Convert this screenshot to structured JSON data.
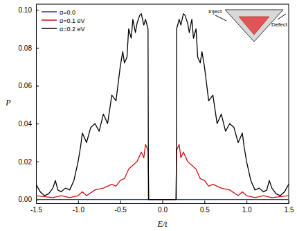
{
  "chart_data": {
    "type": "line",
    "x_label": "E/t",
    "y_label": "P",
    "xlim": [
      -1.5,
      1.5
    ],
    "ylim": [
      -0.002,
      0.103
    ],
    "xticks": [
      -1.5,
      {
        "value": -1,
        "label": "-1.0"
      },
      -0.5,
      {
        "value": 0,
        "label": "0.0"
      },
      0.5,
      {
        "value": 1,
        "label": "1.0"
      },
      1.5
    ],
    "yticks": [
      {
        "value": 0,
        "label": "0.00"
      },
      {
        "value": 0.02,
        "label": "0.02"
      },
      {
        "value": 0.04,
        "label": "0.04"
      },
      {
        "value": 0.06,
        "label": "0.06"
      },
      {
        "value": 0.08,
        "label": "0.08"
      },
      {
        "value": 0.1,
        "label": "0.10"
      }
    ],
    "legend": "upper left",
    "annotations": [
      {
        "text": "Inject"
      },
      {
        "text": "Defect"
      }
    ],
    "series": [
      {
        "name": "α=0.0",
        "color": "#2233cc",
        "x": [
          -1.5,
          1.5
        ],
        "values": [
          0,
          0
        ]
      },
      {
        "name": "α=0.1 eV",
        "color": "#cc1111",
        "x": [
          -1.5,
          -1.3,
          -1.2,
          -1.1,
          -1.0,
          -0.95,
          -0.9,
          -0.8,
          -0.7,
          -0.6,
          -0.55,
          -0.5,
          -0.45,
          -0.4,
          -0.35,
          -0.3,
          -0.25,
          -0.22,
          -0.2,
          -0.17,
          -0.16,
          0.16,
          0.17,
          0.2,
          0.22,
          0.25,
          0.3,
          0.35,
          0.4,
          0.45,
          0.5,
          0.55,
          0.6,
          0.7,
          0.8,
          0.9,
          0.95,
          1.0,
          1.1,
          1.2,
          1.3,
          1.5
        ],
        "values": [
          0.002,
          0.001,
          0.002,
          0.001,
          0.002,
          0.004,
          0.002,
          0.005,
          0.006,
          0.008,
          0.007,
          0.01,
          0.011,
          0.016,
          0.018,
          0.02,
          0.025,
          0.022,
          0.029,
          0.026,
          0,
          0,
          0.026,
          0.029,
          0.022,
          0.025,
          0.02,
          0.018,
          0.016,
          0.011,
          0.01,
          0.007,
          0.008,
          0.006,
          0.005,
          0.002,
          0.004,
          0.002,
          0.001,
          0.002,
          0.001,
          0.002
        ]
      },
      {
        "name": "α=0.2 eV",
        "color": "#000000",
        "x": [
          -1.5,
          -1.45,
          -1.4,
          -1.35,
          -1.3,
          -1.27,
          -1.24,
          -1.2,
          -1.15,
          -1.1,
          -1.05,
          -1.0,
          -0.97,
          -0.95,
          -0.9,
          -0.85,
          -0.8,
          -0.75,
          -0.7,
          -0.65,
          -0.6,
          -0.55,
          -0.5,
          -0.47,
          -0.45,
          -0.42,
          -0.4,
          -0.37,
          -0.35,
          -0.32,
          -0.3,
          -0.27,
          -0.25,
          -0.22,
          -0.2,
          -0.17,
          -0.165,
          0.165,
          0.17,
          0.2,
          0.22,
          0.25,
          0.27,
          0.3,
          0.32,
          0.35,
          0.37,
          0.4,
          0.42,
          0.45,
          0.47,
          0.5,
          0.55,
          0.6,
          0.65,
          0.7,
          0.75,
          0.8,
          0.85,
          0.9,
          0.95,
          0.97,
          1.0,
          1.05,
          1.1,
          1.15,
          1.2,
          1.24,
          1.27,
          1.3,
          1.35,
          1.4,
          1.45,
          1.5
        ],
        "values": [
          0.008,
          0.004,
          0.002,
          0.003,
          0.006,
          0.01,
          0.005,
          0.004,
          0.006,
          0.005,
          0.01,
          0.02,
          0.028,
          0.035,
          0.03,
          0.038,
          0.04,
          0.036,
          0.045,
          0.04,
          0.055,
          0.052,
          0.07,
          0.078,
          0.072,
          0.075,
          0.09,
          0.085,
          0.095,
          0.088,
          0.093,
          0.097,
          0.098,
          0.092,
          0.095,
          0.09,
          0,
          0,
          0.09,
          0.095,
          0.092,
          0.098,
          0.097,
          0.093,
          0.088,
          0.095,
          0.085,
          0.09,
          0.075,
          0.072,
          0.078,
          0.07,
          0.052,
          0.055,
          0.04,
          0.045,
          0.036,
          0.04,
          0.038,
          0.03,
          0.035,
          0.028,
          0.02,
          0.01,
          0.005,
          0.006,
          0.004,
          0.005,
          0.01,
          0.006,
          0.003,
          0.002,
          0.004,
          0.008
        ]
      }
    ]
  }
}
